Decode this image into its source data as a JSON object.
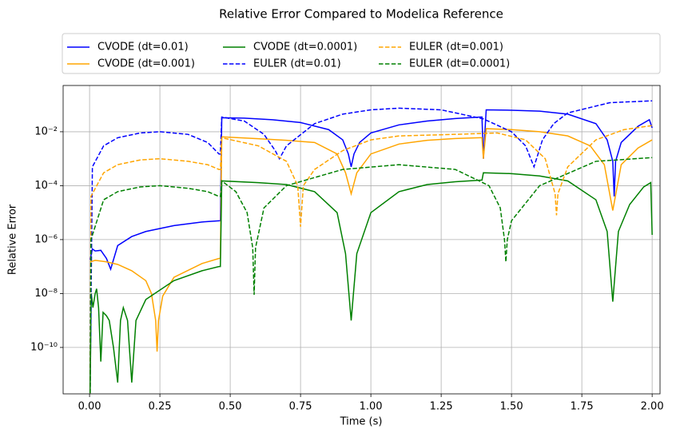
{
  "chart_data": {
    "type": "line",
    "title": "Relative Error Compared to Modelica Reference",
    "x_label": "Time (s)",
    "y_label": "Relative Error",
    "yscale": "log",
    "grid": true,
    "legend": "top",
    "xlim": [
      -0.094,
      2.028
    ],
    "ylim": [
      1.9e-12,
      0.52
    ],
    "xticks": [
      {
        "value": 0,
        "label": "0.00"
      },
      {
        "value": 0.25,
        "label": "0.25"
      },
      {
        "value": 0.5,
        "label": "0.50"
      },
      {
        "value": 0.75,
        "label": "0.75"
      },
      {
        "value": 1,
        "label": "1.00"
      },
      {
        "value": 1.25,
        "label": "1.25"
      },
      {
        "value": 1.5,
        "label": "1.50"
      },
      {
        "value": 1.75,
        "label": "1.75"
      },
      {
        "value": 2,
        "label": "2.00"
      }
    ],
    "yticks": [
      {
        "value": 1e-10,
        "label": "10⁻¹⁰"
      },
      {
        "value": 1e-08,
        "label": "10⁻⁸"
      },
      {
        "value": 1e-06,
        "label": "10⁻⁶"
      },
      {
        "value": 0.0001,
        "label": "10⁻⁴"
      },
      {
        "value": 0.01,
        "label": "10⁻²"
      }
    ],
    "series": [
      {
        "name": "CVODE (dt=0.01)",
        "color": "#0000ff",
        "dashed": false,
        "x": [
          0.002,
          0.01,
          0.02,
          0.04,
          0.06,
          0.075,
          0.1,
          0.15,
          0.2,
          0.3,
          0.4,
          0.46,
          0.465,
          0.47,
          0.55,
          0.65,
          0.75,
          0.85,
          0.9,
          0.92,
          0.93,
          0.94,
          0.96,
          1.0,
          1.1,
          1.2,
          1.3,
          1.39,
          1.395,
          1.4,
          1.41,
          1.5,
          1.6,
          1.7,
          1.8,
          1.84,
          1.86,
          1.865,
          1.87,
          1.89,
          1.95,
          1.99,
          2.0
        ],
        "values": [
          1.8e-07,
          4.5e-07,
          3.8e-07,
          4e-07,
          2e-07,
          8e-08,
          6e-07,
          1.3e-06,
          2e-06,
          3.3e-06,
          4.5e-06,
          5e-06,
          5e-06,
          0.033,
          0.032,
          0.028,
          0.022,
          0.012,
          0.005,
          0.0015,
          0.0005,
          0.0015,
          0.004,
          0.009,
          0.018,
          0.025,
          0.031,
          0.035,
          0.035,
          0.001,
          0.065,
          0.063,
          0.058,
          0.045,
          0.02,
          0.005,
          0.0008,
          4e-05,
          0.0008,
          0.004,
          0.016,
          0.028,
          0.014
        ]
      },
      {
        "name": "CVODE (dt=0.001)",
        "color": "#ffa500",
        "dashed": false,
        "x": [
          0.002,
          0.02,
          0.06,
          0.1,
          0.15,
          0.2,
          0.22,
          0.235,
          0.24,
          0.245,
          0.26,
          0.3,
          0.4,
          0.46,
          0.465,
          0.47,
          0.6,
          0.7,
          0.8,
          0.88,
          0.91,
          0.93,
          0.95,
          1.0,
          1.1,
          1.2,
          1.3,
          1.39,
          1.395,
          1.4,
          1.41,
          1.5,
          1.6,
          1.7,
          1.78,
          1.83,
          1.86,
          1.89,
          1.95,
          2.0
        ],
        "values": [
          1.5e-07,
          1.7e-07,
          1.5e-07,
          1.2e-07,
          7e-08,
          3e-08,
          1e-08,
          1e-09,
          7e-11,
          1e-09,
          8e-09,
          4e-08,
          1.3e-07,
          2e-07,
          2e-07,
          0.0065,
          0.0055,
          0.0048,
          0.004,
          0.0015,
          0.0003,
          5e-05,
          0.0003,
          0.0015,
          0.0035,
          0.0048,
          0.0056,
          0.006,
          0.006,
          0.001,
          0.013,
          0.012,
          0.01,
          0.007,
          0.003,
          0.0006,
          1.2e-05,
          0.0006,
          0.0025,
          0.005
        ]
      },
      {
        "name": "CVODE (dt=0.0001)",
        "color": "#008000",
        "dashed": false,
        "x": [
          0.002,
          0.006,
          0.012,
          0.02,
          0.025,
          0.032,
          0.04,
          0.048,
          0.06,
          0.07,
          0.085,
          0.1,
          0.11,
          0.12,
          0.135,
          0.15,
          0.165,
          0.2,
          0.3,
          0.4,
          0.46,
          0.465,
          0.47,
          0.6,
          0.7,
          0.8,
          0.88,
          0.91,
          0.93,
          0.95,
          1.0,
          1.1,
          1.2,
          1.3,
          1.39,
          1.395,
          1.4,
          1.5,
          1.6,
          1.7,
          1.8,
          1.84,
          1.86,
          1.88,
          1.92,
          1.97,
          1.995,
          2.0
        ],
        "values": [
          2e-12,
          1e-08,
          3e-09,
          1e-08,
          1.5e-08,
          3e-09,
          3e-11,
          2e-09,
          1.5e-09,
          1e-09,
          1e-10,
          5e-12,
          1e-09,
          3e-09,
          1e-09,
          5e-12,
          1e-09,
          6e-09,
          3e-08,
          7e-08,
          1e-07,
          1e-07,
          0.00015,
          0.00013,
          0.00011,
          6e-05,
          1e-05,
          3e-07,
          1e-09,
          3e-07,
          1e-05,
          6e-05,
          0.00011,
          0.00014,
          0.00016,
          0.00016,
          0.0003,
          0.00028,
          0.00023,
          0.00015,
          3e-05,
          2e-06,
          5e-09,
          2e-06,
          2e-05,
          9e-05,
          0.00013,
          1.5e-06
        ]
      },
      {
        "name": "EULER (dt=0.01)",
        "color": "#0000ff",
        "dashed": true,
        "x": [
          0.002,
          0.01,
          0.05,
          0.1,
          0.18,
          0.25,
          0.35,
          0.42,
          0.46,
          0.465,
          0.47,
          0.55,
          0.62,
          0.66,
          0.675,
          0.7,
          0.8,
          0.9,
          1.0,
          1.1,
          1.25,
          1.4,
          1.5,
          1.55,
          1.58,
          1.61,
          1.65,
          1.7,
          1.85,
          2.0
        ],
        "values": [
          2e-12,
          0.0005,
          0.003,
          0.006,
          0.009,
          0.01,
          0.008,
          0.004,
          0.0015,
          0.0015,
          0.035,
          0.025,
          0.008,
          0.002,
          0.001,
          0.003,
          0.02,
          0.045,
          0.065,
          0.075,
          0.065,
          0.03,
          0.01,
          0.003,
          0.0005,
          0.005,
          0.02,
          0.05,
          0.12,
          0.14
        ]
      },
      {
        "name": "EULER (dt=0.001)",
        "color": "#ffa500",
        "dashed": true,
        "x": [
          0.002,
          0.005,
          0.05,
          0.1,
          0.18,
          0.25,
          0.35,
          0.42,
          0.46,
          0.465,
          0.47,
          0.6,
          0.7,
          0.74,
          0.75,
          0.76,
          0.8,
          0.9,
          1.0,
          1.1,
          1.3,
          1.45,
          1.55,
          1.62,
          1.655,
          1.66,
          1.665,
          1.7,
          1.8,
          1.9,
          2.0
        ],
        "values": [
          2e-12,
          4e-05,
          0.0003,
          0.0006,
          0.0009,
          0.001,
          0.0008,
          0.0006,
          0.0004,
          0.0004,
          0.006,
          0.003,
          0.0008,
          0.0001,
          3e-06,
          0.0001,
          0.0004,
          0.002,
          0.005,
          0.007,
          0.008,
          0.009,
          0.005,
          0.001,
          5e-05,
          8e-06,
          5e-05,
          0.0005,
          0.005,
          0.012,
          0.017
        ]
      },
      {
        "name": "EULER (dt=0.0001)",
        "color": "#008000",
        "dashed": true,
        "x": [
          0.002,
          0.005,
          0.05,
          0.1,
          0.18,
          0.25,
          0.35,
          0.42,
          0.46,
          0.465,
          0.47,
          0.52,
          0.56,
          0.58,
          0.585,
          0.59,
          0.62,
          0.7,
          0.9,
          1.1,
          1.3,
          1.42,
          1.46,
          1.475,
          1.48,
          1.485,
          1.5,
          1.6,
          1.8,
          2.0
        ],
        "values": [
          2e-12,
          1e-06,
          3e-05,
          6e-05,
          9e-05,
          0.0001,
          8e-05,
          6e-05,
          4e-05,
          4e-05,
          0.00015,
          6e-05,
          1e-05,
          5e-07,
          9e-09,
          5e-07,
          1.5e-05,
          0.0001,
          0.0004,
          0.0006,
          0.0004,
          0.0001,
          1.5e-05,
          1e-06,
          1.5e-07,
          1e-06,
          5e-06,
          0.0001,
          0.0008,
          0.0011
        ]
      }
    ]
  }
}
